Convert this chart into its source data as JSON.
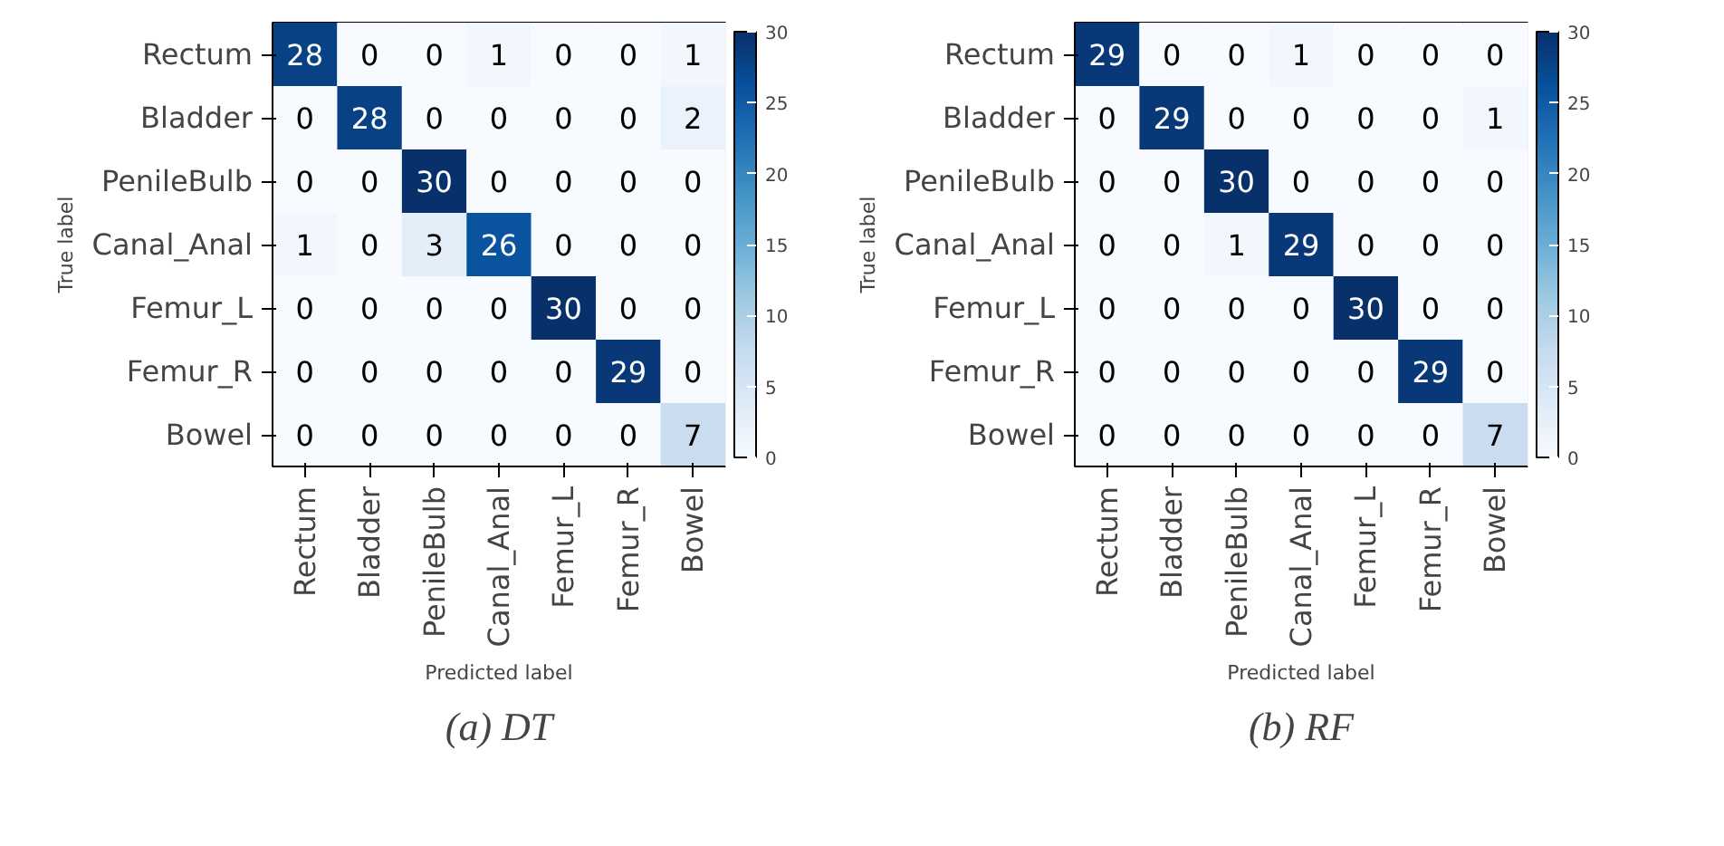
{
  "chart_data": [
    {
      "type": "heatmap",
      "categories": [
        "Rectum",
        "Bladder",
        "PenileBulb",
        "Canal_Anal",
        "Femur_L",
        "Femur_R",
        "Bowel"
      ],
      "y_categories": [
        "Rectum",
        "Bladder",
        "PenileBulb",
        "Canal_Anal",
        "Femur_L",
        "Femur_R",
        "Bowel"
      ],
      "cells": [
        [
          28,
          0,
          0,
          1,
          0,
          0,
          1
        ],
        [
          0,
          28,
          0,
          0,
          0,
          0,
          2
        ],
        [
          0,
          0,
          30,
          0,
          0,
          0,
          0
        ],
        [
          1,
          0,
          3,
          26,
          0,
          0,
          0
        ],
        [
          0,
          0,
          0,
          0,
          30,
          0,
          0
        ],
        [
          0,
          0,
          0,
          0,
          0,
          29,
          0
        ],
        [
          0,
          0,
          0,
          0,
          0,
          0,
          7
        ]
      ],
      "clim": [
        0,
        30
      ],
      "cticks": [
        0,
        5,
        10,
        15,
        20,
        25,
        30
      ],
      "xlabel": "Predicted label",
      "ylabel": "True label",
      "data_labels": true,
      "annotations": [
        "(a) DT"
      ]
    },
    {
      "type": "heatmap",
      "categories": [
        "Rectum",
        "Bladder",
        "PenileBulb",
        "Canal_Anal",
        "Femur_L",
        "Femur_R",
        "Bowel"
      ],
      "y_categories": [
        "Rectum",
        "Bladder",
        "PenileBulb",
        "Canal_Anal",
        "Femur_L",
        "Femur_R",
        "Bowel"
      ],
      "cells": [
        [
          29,
          0,
          0,
          1,
          0,
          0,
          0
        ],
        [
          0,
          29,
          0,
          0,
          0,
          0,
          1
        ],
        [
          0,
          0,
          30,
          0,
          0,
          0,
          0
        ],
        [
          0,
          0,
          1,
          29,
          0,
          0,
          0
        ],
        [
          0,
          0,
          0,
          0,
          30,
          0,
          0
        ],
        [
          0,
          0,
          0,
          0,
          0,
          29,
          0
        ],
        [
          0,
          0,
          0,
          0,
          0,
          0,
          7
        ]
      ],
      "clim": [
        0,
        30
      ],
      "cticks": [
        0,
        5,
        10,
        15,
        20,
        25,
        30
      ],
      "xlabel": "Predicted label",
      "ylabel": "True label",
      "data_labels": true,
      "annotations": [
        "(b) RF"
      ]
    }
  ]
}
